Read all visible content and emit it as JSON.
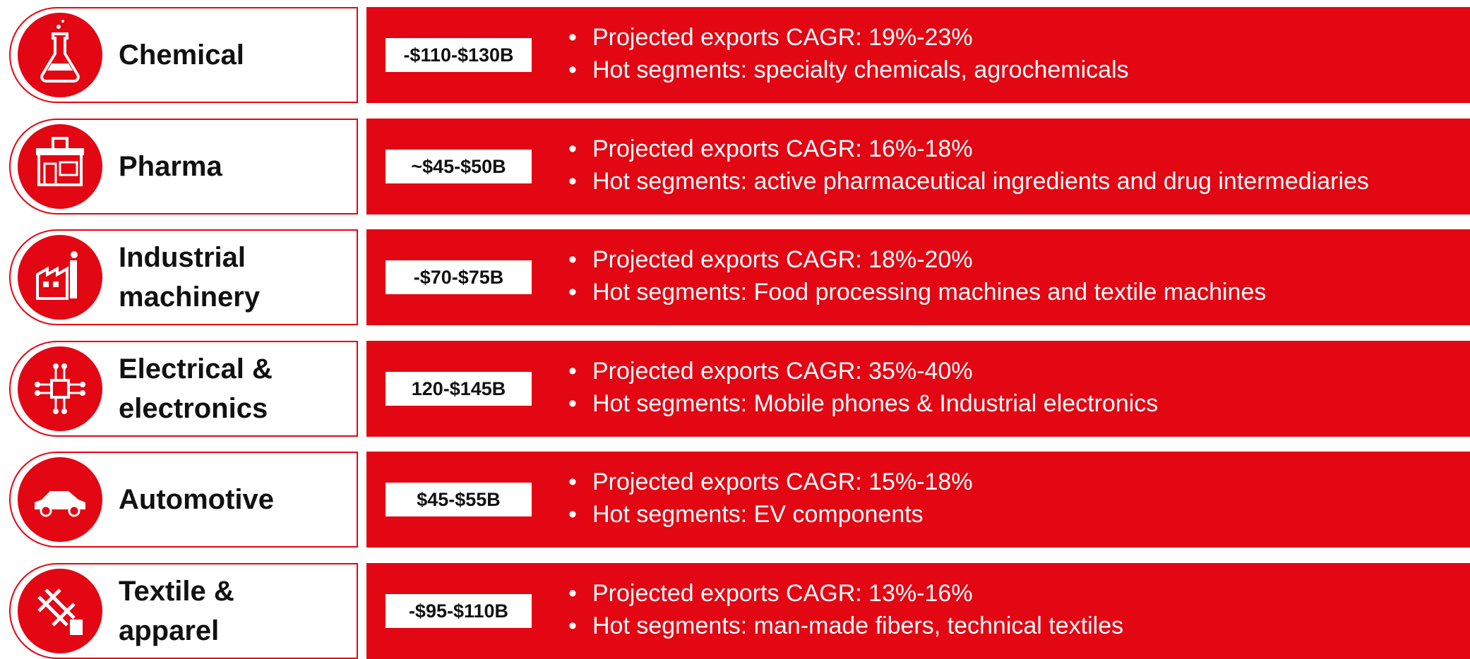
{
  "sectors": [
    {
      "label": [
        "Chemical"
      ],
      "value": "-$110-$130B",
      "bullets": [
        "Projected exports CAGR: 19%-23%",
        "Hot segments: specialty chemicals, agrochemicals"
      ]
    },
    {
      "label": [
        "Pharma"
      ],
      "value": "~$45-$50B",
      "bullets": [
        "Projected exports CAGR: 16%-18%",
        "Hot segments: active pharmaceutical ingredients and drug intermediaries"
      ]
    },
    {
      "label": [
        "Industrial",
        "machinery"
      ],
      "value": "-$70-$75B",
      "bullets": [
        "Projected exports CAGR: 18%-20%",
        "Hot segments: Food processing machines and textile machines"
      ]
    },
    {
      "label": [
        "Electrical &",
        "electronics"
      ],
      "value": "120-$145B",
      "bullets": [
        "Projected exports CAGR: 35%-40%",
        "Hot segments: Mobile phones & Industrial electronics"
      ]
    },
    {
      "label": [
        "Automotive"
      ],
      "value": "$45-$55B",
      "bullets": [
        "Projected exports CAGR: 15%-18%",
        "Hot segments: EV components"
      ]
    },
    {
      "label": [
        "Textile &",
        "apparel"
      ],
      "value": "-$95-$110B",
      "bullets": [
        "Projected exports CAGR: 13%-16%",
        "Hot segments: man-made fibers, technical textiles"
      ]
    }
  ]
}
